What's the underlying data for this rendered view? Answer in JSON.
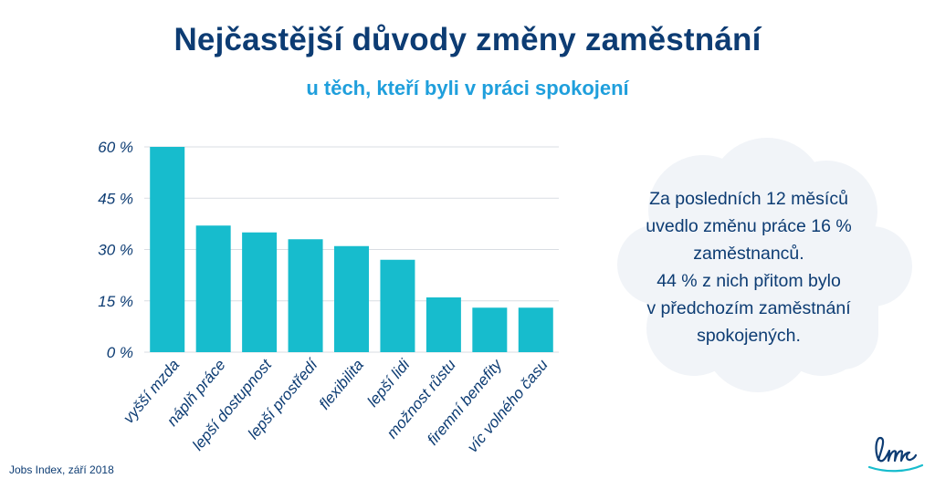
{
  "title": "Nejčastější důvody změny zaměstnání",
  "subtitle": "u těch, kteří byli v práci spokojení",
  "side_note": {
    "lines": [
      "Za posledních 12 měsíců",
      "uvedlo změnu práce 16 %",
      "zaměstnanců.",
      "44 % z nich přitom bylo",
      "v předchozím zaměstnání",
      "spokojených."
    ]
  },
  "source": "Jobs Index, září 2018",
  "logo": {
    "text": "lmc",
    "icon": "lmc-logo-icon"
  },
  "colors": {
    "bar": "#17bccd",
    "title": "#0d3c73",
    "subtitle": "#1f9fdc",
    "axis_text": "#0d3c73",
    "grid": "#d9dde3",
    "cloud": "#f1f4f8"
  },
  "chart_data": {
    "type": "bar",
    "title": "Nejčastější důvody změny zaměstnání",
    "categories": [
      "vyšší mzda",
      "náplň práce",
      "lepší dostupnost",
      "lepší prostředí",
      "flexibilita",
      "lepší lidi",
      "možnost růstu",
      "firemní benefity",
      "víc volného času"
    ],
    "values": [
      60,
      37,
      35,
      33,
      31,
      27,
      16,
      13,
      13
    ],
    "ylim": [
      0,
      60
    ],
    "yticks": [
      0,
      15,
      30,
      45,
      60
    ],
    "ytick_labels": [
      "0 %",
      "15 %",
      "30 %",
      "45 %",
      "60 %"
    ],
    "grid": true,
    "legend": "none"
  }
}
